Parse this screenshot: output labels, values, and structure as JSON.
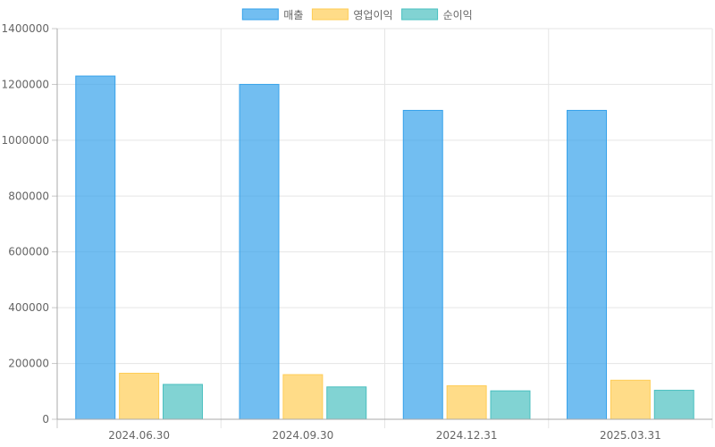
{
  "chart_data": {
    "type": "bar",
    "categories": [
      "2024.06.30",
      "2024.09.30",
      "2024.12.31",
      "2025.03.31"
    ],
    "series": [
      {
        "name": "매출",
        "values": [
          1230000,
          1200000,
          1107000,
          1107000
        ],
        "color": "#36a2eb"
      },
      {
        "name": "영업이익",
        "values": [
          165000,
          160000,
          120000,
          140000
        ],
        "color": "#ffcd56"
      },
      {
        "name": "순이익",
        "values": [
          125000,
          116000,
          102000,
          104000
        ],
        "color": "#4bc0c0"
      }
    ],
    "title": "",
    "xlabel": "",
    "ylabel": "",
    "ylim": [
      0,
      1400000
    ],
    "yticks": [
      "0",
      "200000",
      "400000",
      "600000",
      "800000",
      "1000000",
      "1200000",
      "1400000"
    ],
    "grid": true,
    "legend_position": "top"
  }
}
